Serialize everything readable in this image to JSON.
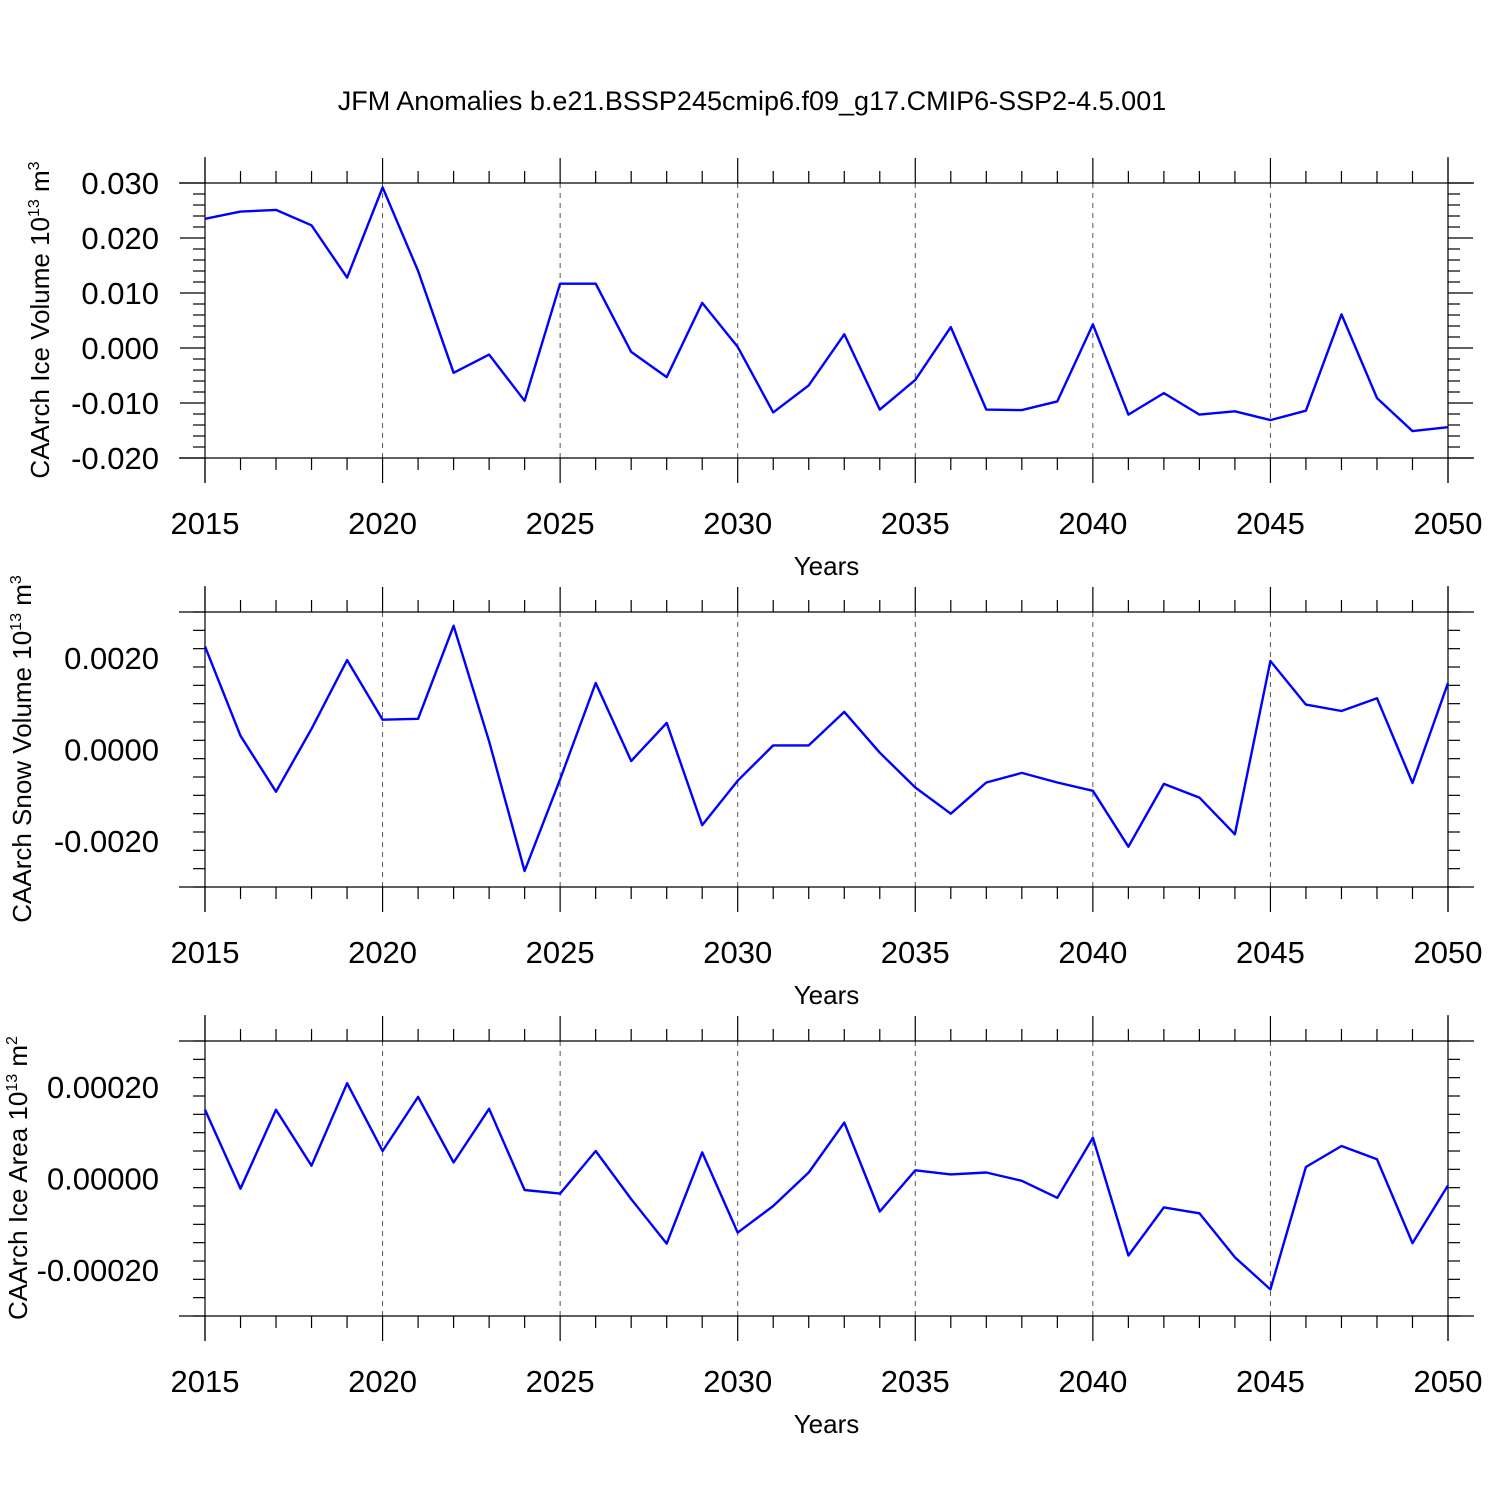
{
  "title": "JFM Anomalies b.e21.BSSP245cmip6.f09_g17.CMIP6-SSP2-4.5.001",
  "line_color": "#0000ff",
  "chart_data": [
    {
      "type": "line",
      "xlabel": "Years",
      "ylabel": "CAArch Ice Volume 10",
      "ylabel_exp": "13",
      "ylabel_unit": " m",
      "ylabel_unit_exp": "3",
      "xlim": [
        2015,
        2050
      ],
      "ylim": [
        -0.02,
        0.03
      ],
      "xticks": [
        2015,
        2020,
        2025,
        2030,
        2035,
        2040,
        2045,
        2050
      ],
      "xtick_labels": [
        "2015",
        "2020",
        "2025",
        "2030",
        "2035",
        "2040",
        "2045",
        "2050"
      ],
      "yticks": [
        -0.02,
        -0.01,
        0.0,
        0.01,
        0.02,
        0.03
      ],
      "ytick_labels": [
        "-0.020",
        "-0.010",
        "0.000",
        "0.010",
        "0.020",
        "0.030"
      ],
      "grid": "dashed vertical at major x ticks",
      "x": [
        2015,
        2016,
        2017,
        2018,
        2019,
        2020,
        2021,
        2022,
        2023,
        2024,
        2025,
        2026,
        2027,
        2028,
        2029,
        2030,
        2031,
        2032,
        2033,
        2034,
        2035,
        2036,
        2037,
        2038,
        2039,
        2040,
        2041,
        2042,
        2043,
        2044,
        2045,
        2046,
        2047,
        2048,
        2049,
        2050
      ],
      "y": [
        0.0235,
        0.0248,
        0.0251,
        0.0223,
        0.0128,
        0.0292,
        0.014,
        -0.0045,
        -0.0012,
        -0.0096,
        0.0117,
        0.0117,
        -0.0007,
        -0.0053,
        0.0082,
        0.0002,
        -0.0117,
        -0.0068,
        0.0025,
        -0.0112,
        -0.0058,
        0.0038,
        -0.0112,
        -0.0113,
        -0.0097,
        0.0043,
        -0.0121,
        -0.0082,
        -0.0121,
        -0.0115,
        -0.0131,
        -0.0114,
        0.0061,
        -0.0091,
        -0.0151,
        -0.0144
      ]
    },
    {
      "type": "line",
      "xlabel": "Years",
      "ylabel": "CAArch Snow Volume 10",
      "ylabel_exp": "13",
      "ylabel_unit": " m",
      "ylabel_unit_exp": "3",
      "xlim": [
        2015,
        2050
      ],
      "ylim": [
        -0.003,
        0.003
      ],
      "xticks": [
        2015,
        2020,
        2025,
        2030,
        2035,
        2040,
        2045,
        2050
      ],
      "xtick_labels": [
        "2015",
        "2020",
        "2025",
        "2030",
        "2035",
        "2040",
        "2045",
        "2050"
      ],
      "yticks": [
        -0.002,
        0.0,
        0.002
      ],
      "ytick_labels": [
        "-0.0020",
        "0.0000",
        "0.0020"
      ],
      "grid": "dashed vertical at major x ticks",
      "x": [
        2015,
        2016,
        2017,
        2018,
        2019,
        2020,
        2021,
        2022,
        2023,
        2024,
        2025,
        2026,
        2027,
        2028,
        2029,
        2030,
        2031,
        2032,
        2033,
        2034,
        2035,
        2036,
        2037,
        2038,
        2039,
        2040,
        2041,
        2042,
        2043,
        2044,
        2045,
        2046,
        2047,
        2048,
        2049,
        2050
      ],
      "y": [
        0.00225,
        0.0003,
        -0.00092,
        0.00045,
        0.00195,
        0.00065,
        0.00067,
        0.0027,
        0.00018,
        -0.00265,
        -0.00065,
        0.00145,
        -0.00025,
        0.00058,
        -0.00165,
        -0.00068,
        9e-05,
        9e-05,
        0.00082,
        -7e-05,
        -0.00083,
        -0.0014,
        -0.00072,
        -0.00051,
        -0.00072,
        -0.0009,
        -0.00212,
        -0.00075,
        -0.00105,
        -0.00185,
        0.00193,
        0.00098,
        0.00084,
        0.00112,
        -0.00073,
        0.00145
      ]
    },
    {
      "type": "line",
      "xlabel": "Years",
      "ylabel": "CAArch Ice Area 10",
      "ylabel_exp": "13",
      "ylabel_unit": " m",
      "ylabel_unit_exp": "2",
      "xlim": [
        2015,
        2050
      ],
      "ylim": [
        -0.0003,
        0.0003
      ],
      "xticks": [
        2015,
        2020,
        2025,
        2030,
        2035,
        2040,
        2045,
        2050
      ],
      "xtick_labels": [
        "2015",
        "2020",
        "2025",
        "2030",
        "2035",
        "2040",
        "2045",
        "2050"
      ],
      "yticks": [
        -0.0002,
        0.0,
        0.0002
      ],
      "ytick_labels": [
        "-0.00020",
        "0.00000",
        "0.00020"
      ],
      "grid": "dashed vertical at major x ticks",
      "x": [
        2015,
        2016,
        2017,
        2018,
        2019,
        2020,
        2021,
        2022,
        2023,
        2024,
        2025,
        2026,
        2027,
        2028,
        2029,
        2030,
        2031,
        2032,
        2033,
        2034,
        2035,
        2036,
        2037,
        2038,
        2039,
        2040,
        2041,
        2042,
        2043,
        2044,
        2045,
        2046,
        2047,
        2048,
        2049,
        2050
      ],
      "y": [
        0.00015,
        -2.2e-05,
        0.00015,
        2.8e-05,
        0.000208,
        6e-05,
        0.000178,
        3.5e-05,
        0.000152,
        -2.5e-05,
        -3.3e-05,
        6e-05,
        -4.5e-05,
        -0.000142,
        5.7e-05,
        -0.000118,
        -6e-05,
        1.3e-05,
        0.000122,
        -7.2e-05,
        1.8e-05,
        9e-06,
        1.3e-05,
        -5e-06,
        -4.2e-05,
        8.9e-05,
        -0.000168,
        -6.3e-05,
        -7.6e-05,
        -0.000172,
        -0.000242,
        2.5e-05,
        7.1e-05,
        4.2e-05,
        -0.000141,
        -1.5e-05
      ]
    }
  ]
}
